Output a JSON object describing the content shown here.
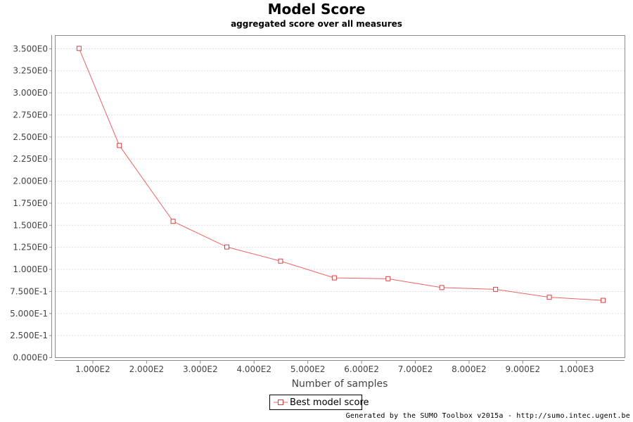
{
  "chart_data": {
    "type": "line",
    "title": "Model Score",
    "subtitle": "aggregated score over all measures",
    "xlabel": "Number of samples",
    "ylabel": "",
    "xlim": [
      30,
      1090
    ],
    "ylim": [
      0,
      3.65
    ],
    "x_ticks": [
      {
        "value": 100,
        "label": "1.000E2"
      },
      {
        "value": 200,
        "label": "2.000E2"
      },
      {
        "value": 300,
        "label": "3.000E2"
      },
      {
        "value": 400,
        "label": "4.000E2"
      },
      {
        "value": 500,
        "label": "5.000E2"
      },
      {
        "value": 600,
        "label": "6.000E2"
      },
      {
        "value": 700,
        "label": "7.000E2"
      },
      {
        "value": 800,
        "label": "8.000E2"
      },
      {
        "value": 900,
        "label": "9.000E2"
      },
      {
        "value": 1000,
        "label": "1.000E3"
      }
    ],
    "y_ticks": [
      {
        "value": 0,
        "label": "0.000E0"
      },
      {
        "value": 0.25,
        "label": "2.500E-1"
      },
      {
        "value": 0.5,
        "label": "5.000E-1"
      },
      {
        "value": 0.75,
        "label": "7.500E-1"
      },
      {
        "value": 1.0,
        "label": "1.000E0"
      },
      {
        "value": 1.25,
        "label": "1.250E0"
      },
      {
        "value": 1.5,
        "label": "1.500E0"
      },
      {
        "value": 1.75,
        "label": "1.750E0"
      },
      {
        "value": 2.0,
        "label": "2.000E0"
      },
      {
        "value": 2.25,
        "label": "2.250E0"
      },
      {
        "value": 2.5,
        "label": "2.500E0"
      },
      {
        "value": 2.75,
        "label": "2.750E0"
      },
      {
        "value": 3.0,
        "label": "3.000E0"
      },
      {
        "value": 3.25,
        "label": "3.250E0"
      },
      {
        "value": 3.5,
        "label": "3.500E0"
      }
    ],
    "grid": true,
    "legend_position": "bottom",
    "series": [
      {
        "name": "Best model score",
        "color": "#f06262",
        "marker": "square-open",
        "x": [
          75,
          150,
          250,
          350,
          450,
          550,
          650,
          750,
          850,
          950,
          1050
        ],
        "values": [
          3.5,
          2.4,
          1.54,
          1.25,
          1.09,
          0.9,
          0.89,
          0.79,
          0.77,
          0.68,
          0.645
        ]
      }
    ]
  },
  "footer": {
    "credit": "Generated by the SUMO Toolbox v2015a - http://sumo.intec.ugent.be"
  }
}
